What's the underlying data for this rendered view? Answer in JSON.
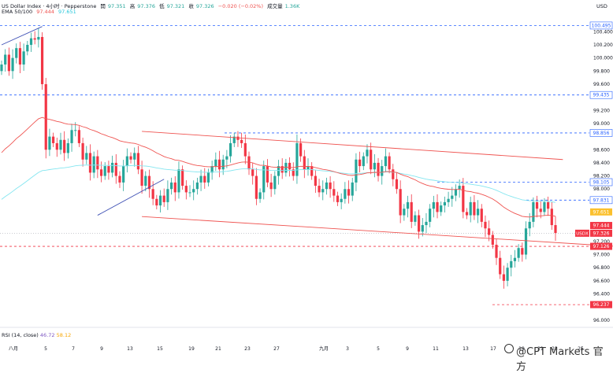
{
  "header": {
    "line1": {
      "symbol": "US Dollar Index · 4小时 · Pepperstone",
      "open_label": "開",
      "open": "97.351",
      "high_label": "高",
      "high": "97.376",
      "low_label": "低",
      "low": "97.321",
      "close_label": "收",
      "close": "97.326",
      "change": "−0.020 (−0.02%)",
      "volume_label": "成交量",
      "volume": "1.36K"
    },
    "line2": {
      "label": "EMA 50/100",
      "v1": "97.444",
      "v2": "97.651"
    }
  },
  "rsi": {
    "label": "RSI (14, close)",
    "v1": "46.72",
    "v2": "58.12"
  },
  "watermark": "@CPT Markets 官方",
  "colors": {
    "up": "#26a69a",
    "down": "#f23645",
    "ema50": "#ef5350",
    "ema100": "#84e6f0",
    "channel": "#ef5350",
    "trend": "#3f51b5",
    "dashed_blue": "#2962ff",
    "dashed_red": "#f23645"
  },
  "chart_data": {
    "type": "candlestick",
    "y_axis_label": "USD",
    "ylim": [
      95.95,
      100.62
    ],
    "y_ticks": [
      "100.400",
      "100.200",
      "100.000",
      "99.800",
      "99.600",
      "99.200",
      "99.000",
      "98.600",
      "98.400",
      "98.200",
      "98.000",
      "97.200",
      "97.000",
      "96.800",
      "96.600",
      "96.400",
      "96.000"
    ],
    "x_ticks": [
      "八月",
      "5",
      "7",
      "9",
      "13",
      "15",
      "19",
      "21",
      "23",
      "27",
      "九月",
      "3",
      "5",
      "9",
      "11",
      "13",
      "17",
      "19",
      "21",
      "23",
      "25"
    ],
    "price_tags": [
      {
        "value": 100.495,
        "label": "100.495",
        "style": "blue-dashed"
      },
      {
        "value": 99.435,
        "label": "99.435",
        "style": "blue-dashed"
      },
      {
        "value": 98.856,
        "label": "98.856",
        "style": "blue-dashed"
      },
      {
        "value": 98.105,
        "label": "98.105",
        "style": "blue-dashed"
      },
      {
        "value": 97.831,
        "label": "97.831",
        "style": "blue-dashed"
      },
      {
        "value": 97.651,
        "label": "97.651",
        "style": "ema100"
      },
      {
        "value": 97.444,
        "label": "97.444",
        "style": "ema50"
      },
      {
        "value": 97.326,
        "label": "97.326",
        "symbol": "USDX",
        "style": "current"
      },
      {
        "value": 97.126,
        "label": "97.126",
        "style": "red-dashed"
      },
      {
        "value": 96.237,
        "label": "96.237",
        "style": "red-dashed"
      }
    ],
    "closes": [
      99.9,
      100.05,
      99.8,
      100.0,
      100.15,
      99.9,
      100.1,
      100.2,
      100.3,
      100.28,
      100.32,
      99.6,
      98.6,
      98.8,
      98.7,
      98.6,
      98.75,
      98.55,
      98.7,
      98.9,
      98.9,
      98.7,
      98.45,
      98.55,
      98.25,
      98.5,
      98.3,
      98.2,
      98.35,
      98.25,
      98.4,
      98.2,
      98.1,
      98.35,
      98.5,
      98.45,
      98.55,
      98.3,
      98.05,
      98.2,
      98.0,
      97.85,
      97.75,
      97.9,
      97.8,
      98.0,
      98.1,
      97.95,
      98.3,
      98.05,
      97.95,
      97.95,
      98.0,
      98.1,
      98.2,
      98.1,
      98.25,
      98.35,
      98.45,
      98.3,
      98.45,
      98.5,
      98.7,
      98.8,
      98.75,
      98.7,
      98.5,
      98.3,
      98.2,
      97.85,
      97.95,
      98.35,
      98.1,
      98.0,
      98.2,
      98.35,
      98.25,
      98.4,
      98.3,
      98.2,
      98.7,
      98.5,
      98.3,
      98.35,
      98.2,
      98.05,
      97.95,
      98.0,
      98.1,
      98.0,
      97.9,
      97.8,
      97.85,
      98.0,
      97.9,
      98.1,
      98.45,
      98.35,
      98.5,
      98.6,
      98.3,
      98.4,
      98.2,
      98.35,
      98.5,
      98.3,
      98.15,
      98.0,
      97.6,
      97.7,
      97.8,
      97.5,
      97.6,
      97.35,
      97.45,
      97.5,
      97.7,
      97.8,
      97.65,
      97.75,
      97.8,
      97.85,
      97.9,
      98.0,
      98.05,
      97.65,
      97.6,
      97.8,
      97.6,
      97.7,
      97.5,
      97.4,
      97.3,
      97.15,
      96.95,
      96.7,
      96.6,
      96.8,
      96.9,
      96.95,
      97.1,
      97.0,
      97.4,
      97.5,
      97.8,
      97.7,
      97.65,
      97.8,
      97.7,
      97.45,
      97.33
    ],
    "ema50_endpoint": 97.444,
    "ema100_endpoint": 97.651,
    "channel_upper": [
      {
        "i": 38,
        "v": 98.88
      },
      {
        "i": 152,
        "v": 98.45
      }
    ],
    "channel_lower": [
      {
        "i": 38,
        "v": 97.58
      },
      {
        "i": 168,
        "v": 97.12
      }
    ],
    "trendlines": [
      [
        {
          "i": 0,
          "v": 100.2
        },
        {
          "i": 11,
          "v": 100.48
        }
      ],
      [
        {
          "i": 26,
          "v": 97.6
        },
        {
          "i": 44,
          "v": 98.15
        }
      ]
    ]
  }
}
